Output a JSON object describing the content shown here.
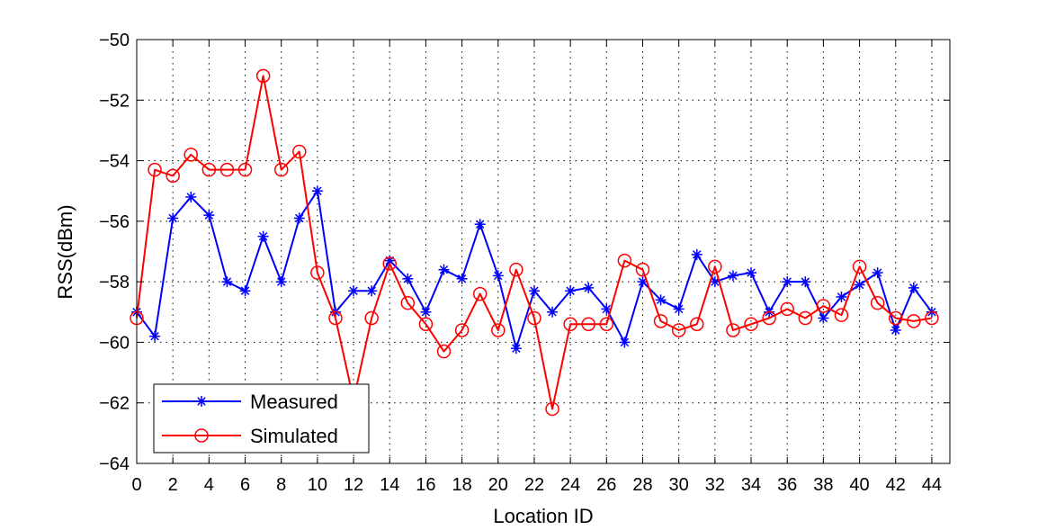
{
  "chart_data": {
    "type": "line",
    "title": "",
    "xlabel": "Location ID",
    "ylabel": "RSS(dBm)",
    "xlim": [
      0,
      45
    ],
    "ylim": [
      -64,
      -50
    ],
    "xticks": [
      0,
      2,
      4,
      6,
      8,
      10,
      12,
      14,
      16,
      18,
      20,
      22,
      24,
      26,
      28,
      30,
      32,
      34,
      36,
      38,
      40,
      42,
      44
    ],
    "yticks": [
      -64,
      -62,
      -60,
      -58,
      -56,
      -54,
      -52,
      -50
    ],
    "xtick_labels": [
      "0",
      "2",
      "4",
      "6",
      "8",
      "10",
      "12",
      "14",
      "16",
      "18",
      "20",
      "22",
      "24",
      "26",
      "28",
      "30",
      "32",
      "34",
      "36",
      "38",
      "40",
      "42",
      "44"
    ],
    "ytick_labels": [
      "−64",
      "−62",
      "−60",
      "−58",
      "−56",
      "−54",
      "−52",
      "−50"
    ],
    "grid": true,
    "legend_position": "bottom-left",
    "x": [
      0,
      1,
      2,
      3,
      4,
      5,
      6,
      7,
      8,
      9,
      10,
      11,
      12,
      13,
      14,
      15,
      16,
      17,
      18,
      19,
      20,
      21,
      22,
      23,
      24,
      25,
      26,
      27,
      28,
      29,
      30,
      31,
      32,
      33,
      34,
      35,
      36,
      37,
      38,
      39,
      40,
      41,
      42,
      43,
      44
    ],
    "series": [
      {
        "name": "Measured",
        "color": "#0000ff",
        "marker": "asterisk",
        "values": [
          -59.0,
          -59.8,
          -55.9,
          -55.2,
          -55.8,
          -58.0,
          -58.3,
          -56.5,
          -58.0,
          -55.9,
          -55.0,
          -59.0,
          -58.3,
          -58.3,
          -57.3,
          -57.9,
          -59.0,
          -57.6,
          -57.9,
          -56.1,
          -57.8,
          -60.2,
          -58.3,
          -59.0,
          -58.3,
          -58.2,
          -58.9,
          -60.0,
          -58.0,
          -58.6,
          -58.9,
          -57.1,
          -58.0,
          -57.8,
          -57.7,
          -59.0,
          -58.0,
          -58.0,
          -59.2,
          -58.5,
          -58.1,
          -57.7,
          -59.6,
          -58.2,
          -59.0
        ]
      },
      {
        "name": "Simulated",
        "color": "#ff0000",
        "marker": "circle",
        "values": [
          -59.2,
          -54.3,
          -54.5,
          -53.8,
          -54.3,
          -54.3,
          -54.3,
          -51.2,
          -54.3,
          -53.7,
          -57.7,
          -59.2,
          -61.9,
          -59.2,
          -57.4,
          -58.7,
          -59.4,
          -60.3,
          -59.6,
          -58.4,
          -59.6,
          -57.6,
          -59.2,
          -62.2,
          -59.4,
          -59.4,
          -59.4,
          -57.3,
          -57.6,
          -59.3,
          -59.6,
          -59.4,
          -57.5,
          -59.6,
          -59.4,
          -59.2,
          -58.9,
          -59.2,
          -58.8,
          -59.1,
          -57.5,
          -58.7,
          -59.2,
          -59.3,
          -59.2
        ]
      }
    ]
  }
}
